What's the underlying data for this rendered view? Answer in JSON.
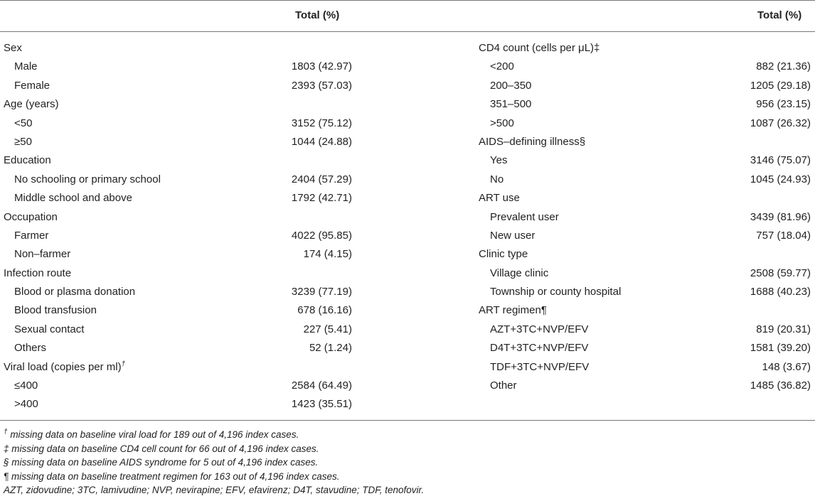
{
  "header": {
    "col_left": "Total (%)",
    "col_right": "Total (%)"
  },
  "left": [
    {
      "label": "Sex",
      "value": ""
    },
    {
      "label": "Male",
      "value": "1803 (42.97)",
      "sub": true
    },
    {
      "label": "Female",
      "value": "2393 (57.03)",
      "sub": true
    },
    {
      "label": "Age (years)",
      "value": ""
    },
    {
      "label": "<50",
      "value": "3152 (75.12)",
      "sub": true
    },
    {
      "label": "≥50",
      "value": "1044 (24.88)",
      "sub": true
    },
    {
      "label": "Education",
      "value": ""
    },
    {
      "label": "No schooling or primary school",
      "value": "2404 (57.29)",
      "sub": true
    },
    {
      "label": "Middle school and above",
      "value": "1792 (42.71)",
      "sub": true
    },
    {
      "label": "Occupation",
      "value": ""
    },
    {
      "label": "Farmer",
      "value": "4022 (95.85)",
      "sub": true
    },
    {
      "label": "Non–farmer",
      "value": "174 (4.15)",
      "sub": true
    },
    {
      "label": "Infection route",
      "value": ""
    },
    {
      "label": "Blood or plasma donation",
      "value": "3239 (77.19)",
      "sub": true
    },
    {
      "label": "Blood transfusion",
      "value": "678 (16.16)",
      "sub": true
    },
    {
      "label": "Sexual contact",
      "value": "227 (5.41)",
      "sub": true
    },
    {
      "label": "Others",
      "value": "52 (1.24)",
      "sub": true
    },
    {
      "label": "Viral load (copies per ml)",
      "mark": "†",
      "value": ""
    },
    {
      "label": "≤400",
      "value": "2584 (64.49)",
      "sub": true
    },
    {
      "label": ">400",
      "value": "1423 (35.51)",
      "sub": true
    }
  ],
  "right": [
    {
      "label": "CD4 count (cells per μL)‡",
      "value": ""
    },
    {
      "label": "<200",
      "value": "882 (21.36)",
      "sub": true
    },
    {
      "label": "200–350",
      "value": "1205 (29.18)",
      "sub": true
    },
    {
      "label": "351–500",
      "value": "956 (23.15)",
      "sub": true
    },
    {
      "label": ">500",
      "value": "1087 (26.32)",
      "sub": true
    },
    {
      "label": "AIDS–defining illness§",
      "value": ""
    },
    {
      "label": "Yes",
      "value": "3146 (75.07)",
      "sub": true
    },
    {
      "label": "No",
      "value": "1045 (24.93)",
      "sub": true
    },
    {
      "label": "ART use",
      "value": ""
    },
    {
      "label": "Prevalent user",
      "value": "3439 (81.96)",
      "sub": true
    },
    {
      "label": "New user",
      "value": "757 (18.04)",
      "sub": true
    },
    {
      "label": "Clinic type",
      "value": ""
    },
    {
      "label": "Village clinic",
      "value": "2508 (59.77)",
      "sub": true
    },
    {
      "label": "Township or county hospital",
      "value": "1688 (40.23)",
      "sub": true
    },
    {
      "label": "ART regimen¶",
      "value": ""
    },
    {
      "label": "AZT+3TC+NVP/EFV",
      "value": "819 (20.31)",
      "sub": true
    },
    {
      "label": "D4T+3TC+NVP/EFV",
      "value": "1581 (39.20)",
      "sub": true
    },
    {
      "label": "TDF+3TC+NVP/EFV",
      "value": "148 (3.67)",
      "sub": true
    },
    {
      "label": "Other",
      "value": "1485 (36.82)",
      "sub": true
    }
  ],
  "footnotes": [
    {
      "mark": "†",
      "text": " missing data on baseline viral load for 189 out of 4,196 index cases."
    },
    {
      "mark": "",
      "text": "‡ missing data on baseline CD4 cell count for 66 out of 4,196 index cases."
    },
    {
      "mark": "",
      "text": "§ missing data on baseline AIDS syndrome for 5 out of 4,196 index cases."
    },
    {
      "mark": "",
      "text": "¶ missing data on baseline treatment regimen for 163 out of 4,196 index cases."
    },
    {
      "mark": "",
      "text": "AZT, zidovudine; 3TC, lamivudine; NVP, nevirapine; EFV, efavirenz; D4T, stavudine; TDF, tenofovir."
    }
  ]
}
